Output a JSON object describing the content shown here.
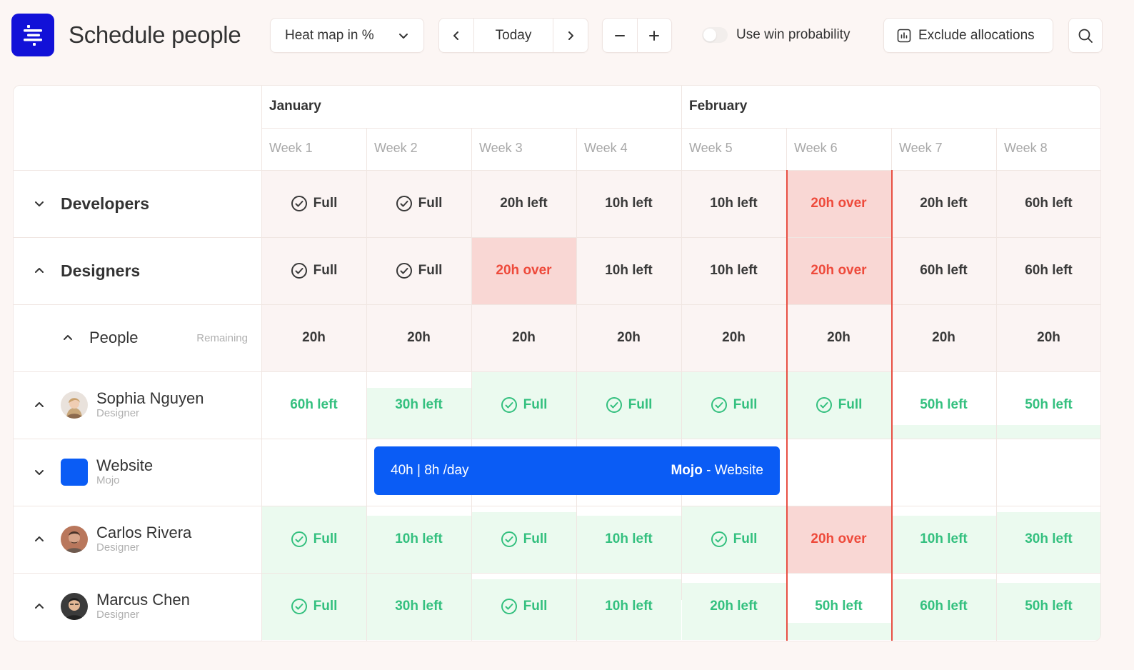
{
  "header": {
    "title": "Schedule people",
    "view_select": "Heat map in %",
    "today_label": "Today",
    "win_probability_label": "Use win probability",
    "exclude_label": "Exclude allocations"
  },
  "grid": {
    "months": [
      "January",
      "February"
    ],
    "weeks": [
      "Week 1",
      "Week 2",
      "Week 3",
      "Week 4",
      "Week 5",
      "Week 6",
      "Week 7",
      "Week 8"
    ],
    "remaining_label": "Remaining",
    "groups": [
      {
        "name": "Developers",
        "cells": [
          "Full",
          "Full",
          "20h left",
          "10h left",
          "10h left",
          "20h over",
          "20h left",
          "60h left"
        ]
      },
      {
        "name": "Designers",
        "cells": [
          "Full",
          "Full",
          "20h over",
          "10h left",
          "10h left",
          "20h over",
          "60h left",
          "60h left"
        ]
      }
    ],
    "people_row": {
      "label": "People",
      "cells": [
        "20h",
        "20h",
        "20h",
        "20h",
        "20h",
        "20h",
        "20h",
        "20h"
      ]
    },
    "people": [
      {
        "name": "Sophia Nguyen",
        "role": "Designer",
        "cells": [
          "60h left",
          "30h left",
          "Full",
          "Full",
          "Full",
          "Full",
          "50h left",
          "50h left"
        ]
      },
      {
        "name": "Carlos Rivera",
        "role": "Designer",
        "cells": [
          "Full",
          "10h left",
          "Full",
          "10h left",
          "Full",
          "20h over",
          "10h left",
          "30h left"
        ]
      },
      {
        "name": "Marcus Chen",
        "role": "Designer",
        "cells": [
          "Full",
          "30h left",
          "Full",
          "10h left",
          "20h left",
          "50h left",
          "60h left",
          "50h left"
        ]
      }
    ],
    "project": {
      "name": "Website",
      "client": "Mojo",
      "bar_hours": "40h | 8h /day",
      "bar_client": "Mojo",
      "bar_sep": " - ",
      "bar_project": "Website",
      "color": "#0a5cf5"
    }
  },
  "colors": {
    "brand": "#1211d8",
    "over": "#ee4a3b",
    "over_bg": "#f9d7d4",
    "ok_text": "#34c07f",
    "ok_bg": "#ebfaef",
    "today_line": "#e84f43"
  }
}
